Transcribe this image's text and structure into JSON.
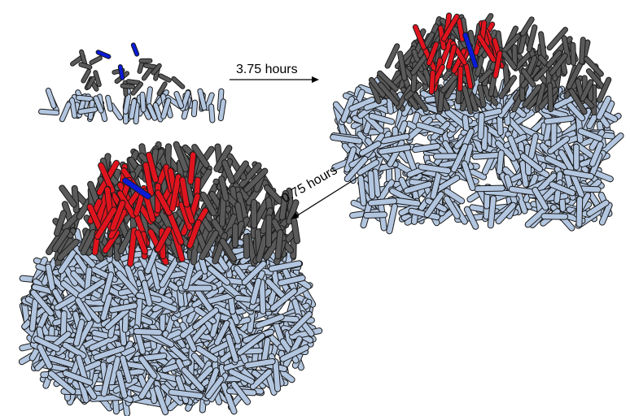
{
  "colors": {
    "bottom_cells": "#b3c6e0",
    "upper_cells": "#5a5a5a",
    "lineage_red": "#e0141e",
    "lineage_blue": "#0a1bd6",
    "outline": "#1a1a1a",
    "arrow": "#000000"
  },
  "arrows": [
    {
      "label": "3.75 hours"
    },
    {
      "label": "0.75 hours"
    }
  ]
}
